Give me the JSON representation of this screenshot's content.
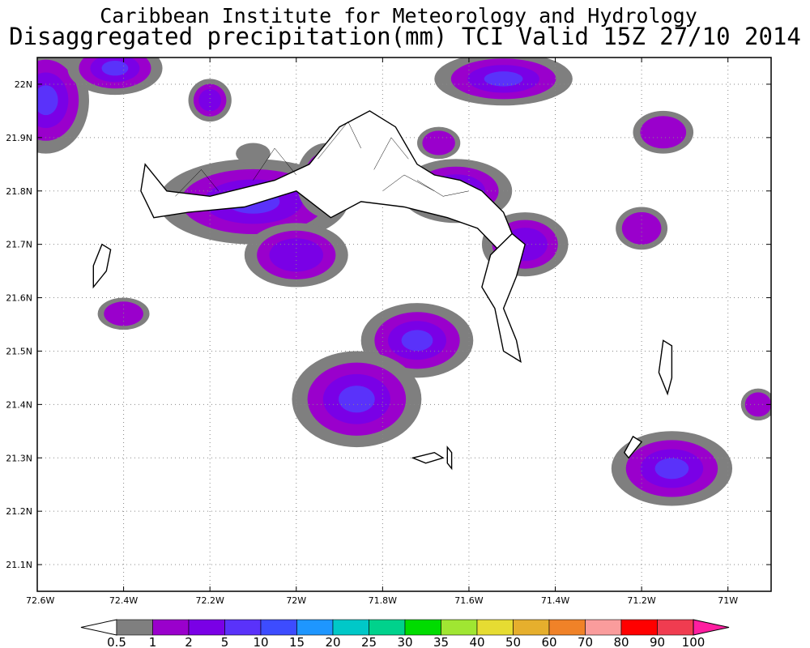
{
  "header": {
    "title": "Caribbean Institute for Meteorology and Hydrology",
    "subtitle": "Disaggregated precipitation(mm) TCI Valid 15Z 27/10 2014"
  },
  "map": {
    "lon_range": [
      -72.6,
      -70.9
    ],
    "lat_range": [
      21.05,
      22.05
    ],
    "lon_ticks": [
      {
        "value": -72.6,
        "label": "72.6W"
      },
      {
        "value": -72.4,
        "label": "72.4W"
      },
      {
        "value": -72.2,
        "label": "72.2W"
      },
      {
        "value": -72.0,
        "label": "72W"
      },
      {
        "value": -71.8,
        "label": "71.8W"
      },
      {
        "value": -71.6,
        "label": "71.6W"
      },
      {
        "value": -71.4,
        "label": "71.4W"
      },
      {
        "value": -71.2,
        "label": "71.2W"
      },
      {
        "value": -71.0,
        "label": "71W"
      }
    ],
    "lat_ticks": [
      {
        "value": 22.0,
        "label": "22N"
      },
      {
        "value": 21.9,
        "label": "21.9N"
      },
      {
        "value": 21.8,
        "label": "21.8N"
      },
      {
        "value": 21.7,
        "label": "21.7N"
      },
      {
        "value": 21.6,
        "label": "21.6N"
      },
      {
        "value": 21.5,
        "label": "21.5N"
      },
      {
        "value": 21.4,
        "label": "21.4N"
      },
      {
        "value": 21.3,
        "label": "21.3N"
      },
      {
        "value": 21.2,
        "label": "21.2N"
      },
      {
        "value": 21.1,
        "label": "21.1N"
      }
    ],
    "grid": true
  },
  "colorbar": {
    "labels": [
      "0.5",
      "1",
      "2",
      "5",
      "10",
      "15",
      "20",
      "25",
      "30",
      "35",
      "40",
      "50",
      "60",
      "70",
      "80",
      "90",
      "100"
    ],
    "colors": [
      "#7f7f7f",
      "#9a00cc",
      "#7a00e6",
      "#5a32fa",
      "#3d4cff",
      "#1e96ff",
      "#00c8c8",
      "#00d28c",
      "#00dc00",
      "#a0e632",
      "#e6dc32",
      "#e6af2d",
      "#f08228",
      "#fa9c9c",
      "#ff0000",
      "#f03c50"
    ],
    "under_color": "#ffffff",
    "over_color": "#ff1ea0"
  },
  "level_colors": [
    "#7f7f7f",
    "#9a00cc",
    "#7a00e6",
    "#5a32fa"
  ],
  "precip_cells": [
    {
      "lon": -72.58,
      "lat": 21.97,
      "rx": 0.1,
      "ry": 0.1,
      "levels": 4
    },
    {
      "lon": -72.42,
      "lat": 22.03,
      "rx": 0.11,
      "ry": 0.05,
      "levels": 4
    },
    {
      "lon": -72.2,
      "lat": 21.97,
      "rx": 0.05,
      "ry": 0.04,
      "levels": 3
    },
    {
      "lon": -72.1,
      "lat": 21.78,
      "rx": 0.22,
      "ry": 0.08,
      "levels": 4
    },
    {
      "lon": -72.0,
      "lat": 21.68,
      "rx": 0.12,
      "ry": 0.06,
      "levels": 3
    },
    {
      "lon": -71.93,
      "lat": 21.82,
      "rx": 0.07,
      "ry": 0.07,
      "levels": 3
    },
    {
      "lon": -71.72,
      "lat": 21.52,
      "rx": 0.13,
      "ry": 0.07,
      "levels": 4
    },
    {
      "lon": -71.86,
      "lat": 21.41,
      "rx": 0.15,
      "ry": 0.09,
      "levels": 4
    },
    {
      "lon": -71.63,
      "lat": 21.8,
      "rx": 0.13,
      "ry": 0.06,
      "levels": 4
    },
    {
      "lon": -71.47,
      "lat": 21.7,
      "rx": 0.1,
      "ry": 0.06,
      "levels": 3
    },
    {
      "lon": -71.52,
      "lat": 22.01,
      "rx": 0.16,
      "ry": 0.05,
      "levels": 4
    },
    {
      "lon": -71.67,
      "lat": 21.89,
      "rx": 0.05,
      "ry": 0.03,
      "levels": 2
    },
    {
      "lon": -71.15,
      "lat": 21.91,
      "rx": 0.07,
      "ry": 0.04,
      "levels": 2
    },
    {
      "lon": -71.2,
      "lat": 21.73,
      "rx": 0.06,
      "ry": 0.04,
      "levels": 2
    },
    {
      "lon": -72.4,
      "lat": 21.57,
      "rx": 0.06,
      "ry": 0.03,
      "levels": 2
    },
    {
      "lon": -71.13,
      "lat": 21.28,
      "rx": 0.14,
      "ry": 0.07,
      "levels": 4
    },
    {
      "lon": -70.93,
      "lat": 21.4,
      "rx": 0.04,
      "ry": 0.03,
      "levels": 2
    },
    {
      "lon": -72.1,
      "lat": 21.87,
      "rx": 0.04,
      "ry": 0.02,
      "levels": 1
    }
  ],
  "islands": [
    {
      "name": "caicos",
      "points": [
        [
          -72.35,
          21.85
        ],
        [
          -72.3,
          21.8
        ],
        [
          -72.2,
          21.79
        ],
        [
          -72.05,
          21.82
        ],
        [
          -71.97,
          21.85
        ],
        [
          -71.9,
          21.92
        ],
        [
          -71.83,
          21.95
        ],
        [
          -71.77,
          21.92
        ],
        [
          -71.72,
          21.85
        ],
        [
          -71.68,
          21.83
        ],
        [
          -71.62,
          21.82
        ],
        [
          -71.57,
          21.8
        ],
        [
          -71.52,
          21.76
        ],
        [
          -71.5,
          21.72
        ],
        [
          -71.52,
          21.68
        ],
        [
          -71.58,
          21.73
        ],
        [
          -71.65,
          21.75
        ],
        [
          -71.75,
          21.77
        ],
        [
          -71.85,
          21.78
        ],
        [
          -71.92,
          21.75
        ],
        [
          -72.0,
          21.8
        ],
        [
          -72.12,
          21.77
        ],
        [
          -72.25,
          21.76
        ],
        [
          -72.33,
          21.75
        ],
        [
          -72.36,
          21.8
        ]
      ]
    },
    {
      "name": "east-caicos",
      "points": [
        [
          -71.5,
          21.72
        ],
        [
          -71.47,
          21.7
        ],
        [
          -71.49,
          21.64
        ],
        [
          -71.52,
          21.58
        ],
        [
          -71.49,
          21.52
        ],
        [
          -71.48,
          21.48
        ],
        [
          -71.52,
          21.5
        ],
        [
          -71.54,
          21.58
        ],
        [
          -71.57,
          21.62
        ],
        [
          -71.55,
          21.68
        ]
      ]
    },
    {
      "name": "west-caicos",
      "points": [
        [
          -72.45,
          21.7
        ],
        [
          -72.43,
          21.69
        ],
        [
          -72.44,
          21.65
        ],
        [
          -72.47,
          21.62
        ],
        [
          -72.47,
          21.66
        ]
      ]
    },
    {
      "name": "grand-turk",
      "points": [
        [
          -71.15,
          21.52
        ],
        [
          -71.13,
          21.51
        ],
        [
          -71.13,
          21.45
        ],
        [
          -71.14,
          21.42
        ],
        [
          -71.16,
          21.46
        ]
      ]
    },
    {
      "name": "salt-cay",
      "points": [
        [
          -71.22,
          21.34
        ],
        [
          -71.2,
          21.33
        ],
        [
          -71.23,
          21.3
        ],
        [
          -71.24,
          21.31
        ]
      ]
    },
    {
      "name": "south-cay",
      "points": [
        [
          -71.73,
          21.3
        ],
        [
          -71.68,
          21.31
        ],
        [
          -71.66,
          21.3
        ],
        [
          -71.7,
          21.29
        ]
      ]
    },
    {
      "name": "long-cay",
      "points": [
        [
          -71.65,
          21.32
        ],
        [
          -71.64,
          21.31
        ],
        [
          -71.64,
          21.28
        ],
        [
          -71.65,
          21.29
        ]
      ]
    }
  ],
  "inner_lines": [
    [
      [
        -72.28,
        21.79
      ],
      [
        -72.22,
        21.84
      ],
      [
        -72.18,
        21.8
      ]
    ],
    [
      [
        -72.1,
        21.82
      ],
      [
        -72.05,
        21.88
      ],
      [
        -72.0,
        21.83
      ]
    ],
    [
      [
        -71.95,
        21.86
      ],
      [
        -71.88,
        21.93
      ],
      [
        -71.85,
        21.88
      ]
    ],
    [
      [
        -71.82,
        21.84
      ],
      [
        -71.78,
        21.9
      ],
      [
        -71.74,
        21.86
      ]
    ],
    [
      [
        -71.72,
        21.82
      ],
      [
        -71.66,
        21.79
      ],
      [
        -71.6,
        21.8
      ]
    ],
    [
      [
        -71.8,
        21.8
      ],
      [
        -71.75,
        21.83
      ],
      [
        -71.68,
        21.8
      ]
    ]
  ]
}
